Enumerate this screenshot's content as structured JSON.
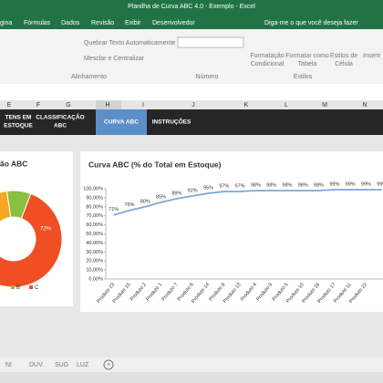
{
  "window": {
    "title": "Planilha de Curva ABC 4.0 - Exemplo - Excel"
  },
  "ribbon": {
    "tabs": [
      "gina",
      "Fórmulas",
      "Dados",
      "Revisão",
      "Exibir",
      "Desenvolvedor"
    ],
    "search": "Diga-me o que você deseja fazer",
    "wrap": "Quebrar Texto Automaticamente",
    "merge": "Mesclar e Centralizar",
    "alignment": "Alinhamento",
    "number": "Número",
    "conditional": [
      "Formatação",
      "Condicional"
    ],
    "table": [
      "Formatar como",
      "Tabela"
    ],
    "cell": [
      "Estilos de",
      "Célula"
    ],
    "styles": "Estilos",
    "insert": "Inserir"
  },
  "columns": [
    "E",
    "F",
    "G",
    "H",
    "I",
    "J",
    "K",
    "L",
    "M",
    "N"
  ],
  "nav": [
    [
      "TENS EM",
      "ESTOQUE"
    ],
    [
      "CLASSIFICAÇÃO",
      "ABC"
    ],
    [
      "CURVA ABC"
    ],
    [
      "INSTRUÇÕES"
    ]
  ],
  "sheets": [
    "NI",
    "DUV",
    "SUG",
    "LUZ"
  ],
  "chart_data": [
    {
      "type": "donut",
      "title": "ão ABC",
      "categories": [
        null,
        "B",
        "C"
      ],
      "values": [
        20,
        8,
        72
      ],
      "value_labels": [
        null,
        null,
        "72%"
      ],
      "colors": [
        "#f5a623",
        "#8bbf3f",
        "#f04e23"
      ]
    },
    {
      "type": "line",
      "title": "Curva ABC (% do Total em Estoque)",
      "categories": [
        "Produto 23",
        "Produto 15",
        "Produto 2",
        "Produto 1",
        "Produto 7",
        "Produto 6",
        "Produto 14",
        "Produto 8",
        "Produto 13",
        "Produto 4",
        "Produto 9",
        "Produto 5",
        "Produto 10",
        "Produto 16",
        "Produto 17",
        "Produto 11",
        "Produto 22",
        null
      ],
      "values": [
        71,
        76,
        80,
        85,
        89,
        92,
        95,
        97,
        97,
        98,
        98,
        98,
        98,
        98,
        99,
        99,
        99,
        99
      ],
      "value_labels": [
        "71%",
        "76%",
        "80%",
        "85%",
        "89%",
        "92%",
        "95%",
        "97%",
        "97%",
        "98%",
        "98%",
        "98%",
        "98%",
        "98%",
        "99%",
        "99%",
        "99%",
        "99%"
      ],
      "color": "#7ea6d8",
      "ylim": [
        0,
        100
      ],
      "yticks": [
        {
          "value": 0,
          "label": "0,00%"
        },
        {
          "value": 10,
          "label": "10,00%"
        },
        {
          "value": 20,
          "label": "20,00%"
        },
        {
          "value": 30,
          "label": "30,00%"
        },
        {
          "value": 40,
          "label": "40,00%"
        },
        {
          "value": 50,
          "label": "50,00%"
        },
        {
          "value": 60,
          "label": "60,00%"
        },
        {
          "value": 70,
          "label": "70,00%"
        },
        {
          "value": 80,
          "label": "80,00%"
        },
        {
          "value": 90,
          "label": "90,00%"
        },
        {
          "value": 100,
          "label": "100,00%"
        }
      ],
      "grid": false
    }
  ]
}
